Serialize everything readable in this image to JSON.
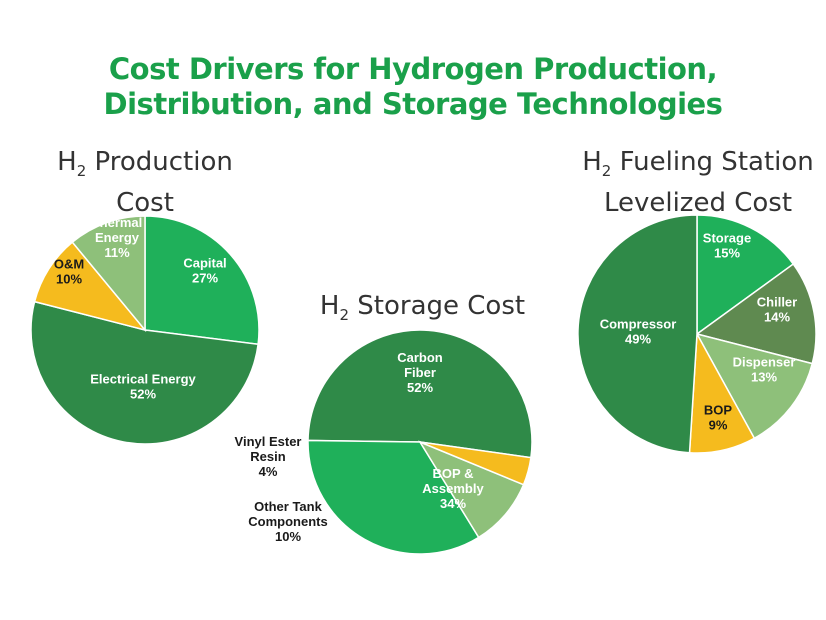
{
  "title": [
    "Cost Drivers for Hydrogen Production,",
    "Distribution, and Storage Technologies"
  ],
  "colors": {
    "dark_green": "#2f8a48",
    "bright_green": "#1fb05a",
    "light_green": "#8ec07a",
    "olive_green": "#5f8a50",
    "yellow": "#f5bb1e",
    "title_green": "#1aa04a"
  },
  "chart_data": [
    {
      "type": "pie",
      "title": {
        "prefix": "H",
        "sub": "2",
        "line1": " Production",
        "line2": "Cost"
      },
      "slices": [
        {
          "label": [
            "Capital"
          ],
          "value": 27,
          "pct": "27%",
          "color": "#1fb05a",
          "text": "#ffffff"
        },
        {
          "label": [
            "Electrical Energy"
          ],
          "value": 52,
          "pct": "52%",
          "color": "#2f8a48",
          "text": "#ffffff"
        },
        {
          "label": [
            "O&M"
          ],
          "value": 10,
          "pct": "10%",
          "color": "#f5bb1e",
          "text": "#1a1a1a"
        },
        {
          "label": [
            "Thermal",
            "Energy"
          ],
          "value": 11,
          "pct": "11%",
          "color": "#8ec07a",
          "text": "#ffffff"
        }
      ]
    },
    {
      "type": "pie",
      "title": {
        "prefix": "H",
        "sub": "2",
        "line1": " Storage Cost",
        "line2": ""
      },
      "slices": [
        {
          "label": [
            "Carbon",
            "Fiber"
          ],
          "value": 52,
          "pct": "52%",
          "color": "#2f8a48",
          "text": "#ffffff"
        },
        {
          "label": [
            "BOP &",
            "Assembly"
          ],
          "value": 34,
          "pct": "34%",
          "color": "#1fb05a",
          "text": "#ffffff"
        },
        {
          "label": [
            "Other Tank",
            "Components"
          ],
          "value": 10,
          "pct": "10%",
          "color": "#8ec07a",
          "text": "#1a1a1a"
        },
        {
          "label": [
            "Vinyl Ester",
            "Resin"
          ],
          "value": 4,
          "pct": "4%",
          "color": "#f5bb1e",
          "text": "#1a1a1a"
        }
      ]
    },
    {
      "type": "pie",
      "title": {
        "prefix": "H",
        "sub": "2",
        "line1": " Fueling Station",
        "line2": "Levelized Cost"
      },
      "slices": [
        {
          "label": [
            "Storage"
          ],
          "value": 15,
          "pct": "15%",
          "color": "#1fb05a",
          "text": "#ffffff"
        },
        {
          "label": [
            "Chiller"
          ],
          "value": 14,
          "pct": "14%",
          "color": "#5f8a50",
          "text": "#ffffff"
        },
        {
          "label": [
            "Dispenser"
          ],
          "value": 13,
          "pct": "13%",
          "color": "#8ec07a",
          "text": "#ffffff"
        },
        {
          "label": [
            "BOP"
          ],
          "value": 9,
          "pct": "9%",
          "color": "#f5bb1e",
          "text": "#1a1a1a"
        },
        {
          "label": [
            "Compressor"
          ],
          "value": 49,
          "pct": "49%",
          "color": "#2f8a48",
          "text": "#ffffff"
        }
      ]
    }
  ]
}
